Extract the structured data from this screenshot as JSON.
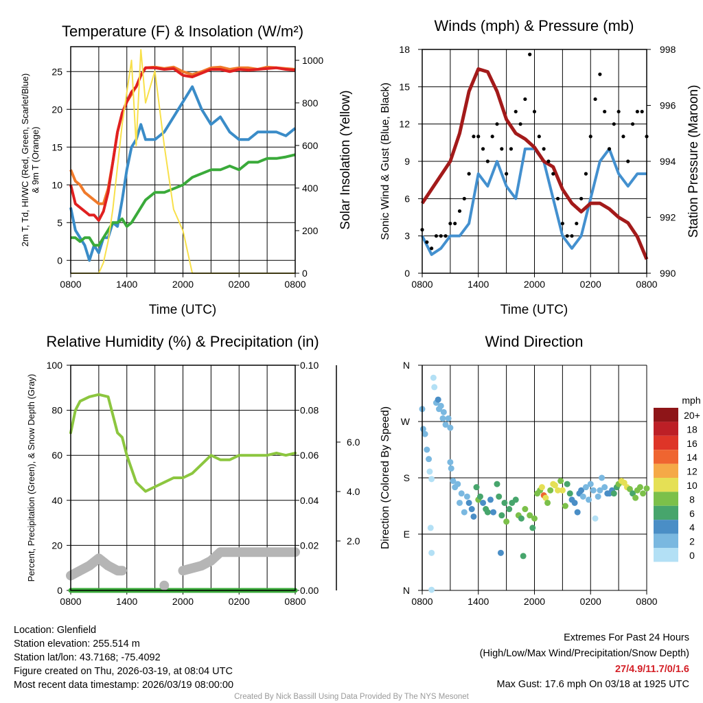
{
  "footer": {
    "location": "Location: Glenfield",
    "elevation": "Station elevation: 255.514 m",
    "latlon": "Station lat/lon: 43.7168; -75.4092",
    "created": "Figure created on Thu, 2026-03-19, at 08:04 UTC",
    "recent": "Most recent data timestamp: 2026/03/19 08:00:00",
    "extremes_title": "Extremes For Past 24 Hours",
    "extremes_legend": "(High/Low/Max Wind/Precipitation/Snow Depth)",
    "extremes_values": "27/4.9/11.7/0/1.6",
    "max_gust": "Max Gust: 17.6 mph On 03/18 at 1925 UTC",
    "credit": "Created By Nick Bassill Using Data Provided By The NYS Mesonet"
  },
  "colors": {
    "extremes": "#d42027",
    "credit": "#999999"
  },
  "chart_data": [
    {
      "id": "temp",
      "type": "line",
      "title": "Temperature (F) & Insolation (W/m²)",
      "xlabel": "Time (UTC)",
      "ylabel": "2m T, Td, HI/WC (Red, Green, Scarlet/Blue)",
      "ylabel2": "& 9m T (Orange)",
      "ylabel_right": "Solar Insolation (Yellow)",
      "xticks": [
        "0800",
        "1400",
        "2000",
        "0200",
        "0800"
      ],
      "yticks": [
        0,
        5,
        10,
        15,
        20,
        25
      ],
      "yticks_right": [
        0,
        200,
        400,
        600,
        800,
        1000
      ],
      "ylim": [
        -1.7,
        28.3
      ],
      "ylim_right": [
        0,
        1064
      ],
      "grid": true,
      "x_hours": [
        0,
        0.5,
        1,
        1.5,
        2,
        2.5,
        3,
        3.5,
        4,
        4.5,
        5,
        5.5,
        6,
        6.5,
        7,
        7.5,
        8,
        9,
        10,
        11,
        12,
        13,
        14,
        15,
        16,
        17,
        18,
        19,
        20,
        21,
        22,
        23,
        24
      ],
      "series": [
        {
          "name": "9m T",
          "axis": "left",
          "color": "#f07a2a",
          "values": [
            12,
            10.5,
            10,
            9,
            8.5,
            8,
            7.5,
            7.5,
            9.5,
            13,
            17,
            19.5,
            21,
            22,
            23,
            24.5,
            25.5,
            25.6,
            25.4,
            25.6,
            25,
            24.6,
            25,
            25.5,
            25.6,
            25.3,
            25.5,
            25.5,
            25.3,
            25.6,
            25.5,
            25.4,
            25.3
          ]
        },
        {
          "name": "2m T",
          "axis": "left",
          "color": "#e02020",
          "values": [
            10,
            7.5,
            7,
            6.5,
            6,
            6,
            5.3,
            6.5,
            9,
            13,
            17,
            19.5,
            21,
            22.3,
            23,
            24.5,
            25.5,
            25.5,
            25.3,
            25.4,
            24.5,
            24.3,
            24.8,
            25.3,
            25.3,
            25,
            25.3,
            25.2,
            25.3,
            25.4,
            25.5,
            25.3,
            25.2
          ]
        },
        {
          "name": "HI/WC",
          "axis": "left",
          "color": "#3a8cc8",
          "values": [
            7,
            4,
            3,
            2,
            0,
            2,
            1,
            3,
            3,
            5,
            4.5,
            8,
            12,
            15,
            16,
            18,
            16,
            16,
            17,
            19,
            21,
            23,
            20,
            18,
            19,
            17,
            16,
            16,
            17,
            17,
            17,
            16.5,
            17.5
          ]
        },
        {
          "name": "Td",
          "axis": "left",
          "color": "#3aaa3a",
          "values": [
            3,
            3,
            2.5,
            3,
            3,
            2,
            2,
            3,
            4,
            5,
            5,
            5.5,
            4.5,
            5,
            6,
            7,
            8,
            9,
            9,
            9.5,
            10,
            11,
            11.5,
            12,
            12,
            12.5,
            12,
            13,
            13,
            13.5,
            13.5,
            13.7,
            14
          ]
        },
        {
          "name": "Solar",
          "axis": "right",
          "color": "#f8e04a",
          "values": [
            0,
            0,
            0,
            0,
            0,
            0,
            0,
            50,
            150,
            300,
            500,
            700,
            850,
            1000,
            600,
            1050,
            800,
            950,
            600,
            300,
            200,
            0,
            0,
            0,
            0,
            0,
            0,
            0,
            0,
            0,
            0,
            0,
            0
          ]
        }
      ]
    },
    {
      "id": "wind",
      "type": "line",
      "title": "Winds (mph) & Pressure (mb)",
      "xlabel": "Time (UTC)",
      "ylabel": "Sonic Wind & Gust (Blue, Black)",
      "ylabel_right": "Station Pressure (Maroon)",
      "xticks": [
        "0800",
        "1400",
        "2000",
        "0200",
        "0800"
      ],
      "yticks": [
        0,
        3,
        6,
        9,
        12,
        15,
        18
      ],
      "yticks_right": [
        990,
        992,
        994,
        996,
        998
      ],
      "ylim": [
        0,
        18
      ],
      "ylim_right": [
        990,
        998
      ],
      "grid": true,
      "x_hours": [
        0,
        1,
        2,
        3,
        4,
        5,
        6,
        7,
        8,
        9,
        10,
        11,
        12,
        13,
        14,
        15,
        16,
        17,
        18,
        19,
        20,
        21,
        22,
        23,
        24
      ],
      "series": [
        {
          "name": "Sonic Wind",
          "axis": "left",
          "color": "#4390cf",
          "values": [
            3,
            1.5,
            2,
            3,
            3,
            4,
            8,
            7,
            9,
            7,
            6,
            10,
            10,
            9,
            6,
            3,
            2,
            3,
            6,
            9,
            10,
            8,
            7,
            8,
            8
          ]
        },
        {
          "name": "Pressure",
          "axis": "right",
          "color": "#a31a1a",
          "values": [
            992.5,
            993,
            993.5,
            994,
            995,
            996.5,
            997.3,
            997.2,
            996.5,
            995.5,
            995,
            994.8,
            994.5,
            994,
            993.8,
            993,
            992.5,
            992.2,
            992.5,
            992.5,
            992.3,
            992,
            991.8,
            991.3,
            990.5
          ]
        }
      ],
      "gust": {
        "name": "Gust",
        "color": "#000000",
        "x_hours": [
          0,
          0.5,
          1,
          1.5,
          2,
          2.5,
          3,
          3.5,
          4,
          4.5,
          5,
          5.5,
          6,
          6.5,
          7,
          7.5,
          8,
          8.5,
          9,
          9.5,
          10,
          10.5,
          11,
          11.5,
          12,
          12.5,
          13,
          13.5,
          14,
          14.5,
          15,
          15.5,
          16,
          16.5,
          17,
          17.5,
          18,
          18.5,
          19,
          19.5,
          20,
          20.5,
          21,
          21.5,
          22,
          22.5,
          23,
          23.5,
          24
        ],
        "values": [
          3.5,
          2.5,
          2,
          3,
          3,
          3,
          4,
          4,
          5,
          6,
          8,
          11,
          11,
          10,
          9,
          11,
          12,
          10,
          8,
          10,
          13,
          12,
          14,
          17.6,
          13,
          11,
          10,
          9,
          8,
          6,
          4,
          3,
          3,
          4,
          6,
          8,
          11,
          14,
          16,
          13,
          10,
          12,
          13,
          11,
          9,
          12,
          13,
          13,
          11
        ]
      }
    },
    {
      "id": "rh",
      "type": "line",
      "title": "Relative Humidity (%) & Precipitation (in)",
      "ylabel": "Percent, Precipitation (Green), & Snow Depth (Gray)",
      "xticks": [
        "0800",
        "1400",
        "2000",
        "0200",
        "0800"
      ],
      "yticks": [
        0,
        20,
        40,
        60,
        80,
        100
      ],
      "yticks_right": [
        "0.00",
        "0.02",
        "0.04",
        "0.06",
        "0.08",
        "0.10"
      ],
      "yticks_snow": [
        "2.0",
        "4.0",
        "6.0"
      ],
      "ylim": [
        0,
        100
      ],
      "ylim_right": [
        0,
        0.1
      ],
      "ylim_snow": [
        0,
        9.11
      ],
      "grid": true,
      "x_hours": [
        0,
        0.5,
        1,
        2,
        3,
        4,
        5,
        5.5,
        6,
        7,
        8,
        9,
        10,
        11,
        12,
        13,
        14,
        15,
        16,
        17,
        18,
        19,
        20,
        21,
        22,
        23,
        24
      ],
      "series": [
        {
          "name": "RH",
          "axis": "left",
          "color": "#8cc63f",
          "values": [
            70,
            80,
            84,
            86,
            87,
            86,
            70,
            68,
            60,
            48,
            44,
            46,
            48,
            50,
            50,
            52,
            56,
            60,
            58,
            58,
            60,
            60,
            60,
            60,
            61,
            60,
            61
          ]
        },
        {
          "name": "Precipitation",
          "axis": "right",
          "color": "#3aaa3a",
          "values": [
            0,
            0,
            0,
            0,
            0,
            0,
            0,
            0,
            0,
            0,
            0,
            0,
            0,
            0,
            0,
            0,
            0,
            0,
            0,
            0,
            0,
            0,
            0,
            0,
            0,
            0,
            0
          ]
        },
        {
          "name": "Snow Depth",
          "axis": "snow",
          "color": "#b5b5b5",
          "values": [
            0.6,
            0.7,
            0.8,
            1.0,
            1.3,
            1.0,
            0.8,
            0.8,
            null,
            null,
            null,
            null,
            0.2,
            null,
            0.8,
            0.9,
            1.0,
            1.2,
            1.55,
            1.55,
            1.55,
            1.55,
            1.55,
            1.55,
            1.55,
            1.55,
            1.55
          ]
        }
      ]
    },
    {
      "id": "dir",
      "type": "scatter",
      "title": "Wind Direction",
      "ylabel": "Direction (Colored By Speed)",
      "xticks": [
        "0800",
        "1400",
        "2000",
        "0200",
        "0800"
      ],
      "yticks": [
        "N",
        "E",
        "S",
        "W",
        "N"
      ],
      "ylim": [
        0,
        360
      ],
      "grid": true,
      "legend": {
        "title": "mph",
        "placement": "right",
        "labels": [
          "20+",
          "18",
          "16",
          "14",
          "12",
          "10",
          "8",
          "6",
          "4",
          "2",
          "0"
        ],
        "colors": [
          "#8e1518",
          "#bd1f26",
          "#de3528",
          "#ef6530",
          "#f5a947",
          "#e5e055",
          "#7cc04a",
          "#47a56c",
          "#4a8ec6",
          "#7ab8e0",
          "#b3e0f5"
        ]
      },
      "points_hour_deg_mph": [
        [
          0,
          290,
          2
        ],
        [
          0.1,
          258,
          2
        ],
        [
          0.3,
          250,
          2
        ],
        [
          0.5,
          225,
          2
        ],
        [
          0.7,
          210,
          2
        ],
        [
          0.8,
          190,
          1
        ],
        [
          1,
          178,
          0
        ],
        [
          0.9,
          100,
          0
        ],
        [
          1,
          60,
          0
        ],
        [
          1,
          1,
          0
        ],
        [
          1.2,
          340,
          0
        ],
        [
          1.3,
          325,
          1
        ],
        [
          1.5,
          300,
          2
        ],
        [
          1.7,
          305,
          4
        ],
        [
          1.8,
          290,
          2
        ],
        [
          2,
          295,
          2
        ],
        [
          2.2,
          275,
          2
        ],
        [
          2.3,
          285,
          2
        ],
        [
          2.5,
          265,
          2
        ],
        [
          2.8,
          275,
          2
        ],
        [
          3,
          260,
          2
        ],
        [
          3,
          205,
          2
        ],
        [
          3.1,
          195,
          2
        ],
        [
          3.3,
          175,
          2
        ],
        [
          3.5,
          165,
          2
        ],
        [
          3.8,
          170,
          2
        ],
        [
          4,
          140,
          2
        ],
        [
          4.2,
          155,
          2
        ],
        [
          4.5,
          125,
          2
        ],
        [
          4.8,
          150,
          2
        ],
        [
          5,
          140,
          4
        ],
        [
          5.3,
          130,
          4
        ],
        [
          5.5,
          118,
          4
        ],
        [
          5.8,
          165,
          6
        ],
        [
          6,
          145,
          8
        ],
        [
          6.2,
          150,
          6
        ],
        [
          6.5,
          140,
          4
        ],
        [
          6.8,
          130,
          6
        ],
        [
          7,
          125,
          6
        ],
        [
          7.3,
          145,
          4
        ],
        [
          7.6,
          125,
          4
        ],
        [
          8,
          170,
          6
        ],
        [
          8.2,
          150,
          6
        ],
        [
          8.5,
          120,
          6
        ],
        [
          8.4,
          60,
          4
        ],
        [
          8.8,
          140,
          6
        ],
        [
          9,
          110,
          8
        ],
        [
          9.3,
          130,
          6
        ],
        [
          9.6,
          140,
          6
        ],
        [
          10,
          145,
          6
        ],
        [
          10.3,
          120,
          8
        ],
        [
          10.6,
          115,
          6
        ],
        [
          10.8,
          55,
          6
        ],
        [
          11,
          130,
          8
        ],
        [
          11.5,
          120,
          8
        ],
        [
          11.8,
          100,
          6
        ],
        [
          12,
          115,
          8
        ],
        [
          12.3,
          155,
          8
        ],
        [
          12.6,
          160,
          8
        ],
        [
          12.8,
          165,
          10
        ],
        [
          13,
          152,
          14
        ],
        [
          13.2,
          148,
          10
        ],
        [
          13.4,
          140,
          8
        ],
        [
          13.7,
          160,
          8
        ],
        [
          14,
          170,
          10
        ],
        [
          14.2,
          168,
          10
        ],
        [
          14.5,
          160,
          10
        ],
        [
          14.8,
          175,
          8
        ],
        [
          15,
          160,
          10
        ],
        [
          15.3,
          135,
          8
        ],
        [
          15.5,
          170,
          6
        ],
        [
          15.8,
          155,
          6
        ],
        [
          16,
          145,
          4
        ],
        [
          16.3,
          140,
          4
        ],
        [
          16.6,
          125,
          4
        ],
        [
          16.8,
          155,
          4
        ],
        [
          17,
          160,
          4
        ],
        [
          17.2,
          150,
          2
        ],
        [
          17.5,
          165,
          2
        ],
        [
          17.8,
          145,
          2
        ],
        [
          18,
          170,
          2
        ],
        [
          18.3,
          160,
          2
        ],
        [
          18.5,
          115,
          0
        ],
        [
          18.8,
          150,
          2
        ],
        [
          19,
          160,
          2
        ],
        [
          19.2,
          180,
          2
        ],
        [
          19.5,
          165,
          2
        ],
        [
          19.8,
          155,
          4
        ],
        [
          20,
          155,
          4
        ],
        [
          20.3,
          160,
          4
        ],
        [
          20.5,
          155,
          6
        ],
        [
          20.8,
          165,
          6
        ],
        [
          21,
          170,
          8
        ],
        [
          21.3,
          175,
          10
        ],
        [
          21.6,
          172,
          10
        ],
        [
          21.9,
          165,
          10
        ],
        [
          22.2,
          162,
          8
        ],
        [
          22.5,
          155,
          6
        ],
        [
          22.8,
          148,
          8
        ],
        [
          23,
          160,
          8
        ],
        [
          23.3,
          165,
          8
        ],
        [
          23.6,
          155,
          8
        ],
        [
          24,
          163,
          8
        ]
      ]
    }
  ]
}
